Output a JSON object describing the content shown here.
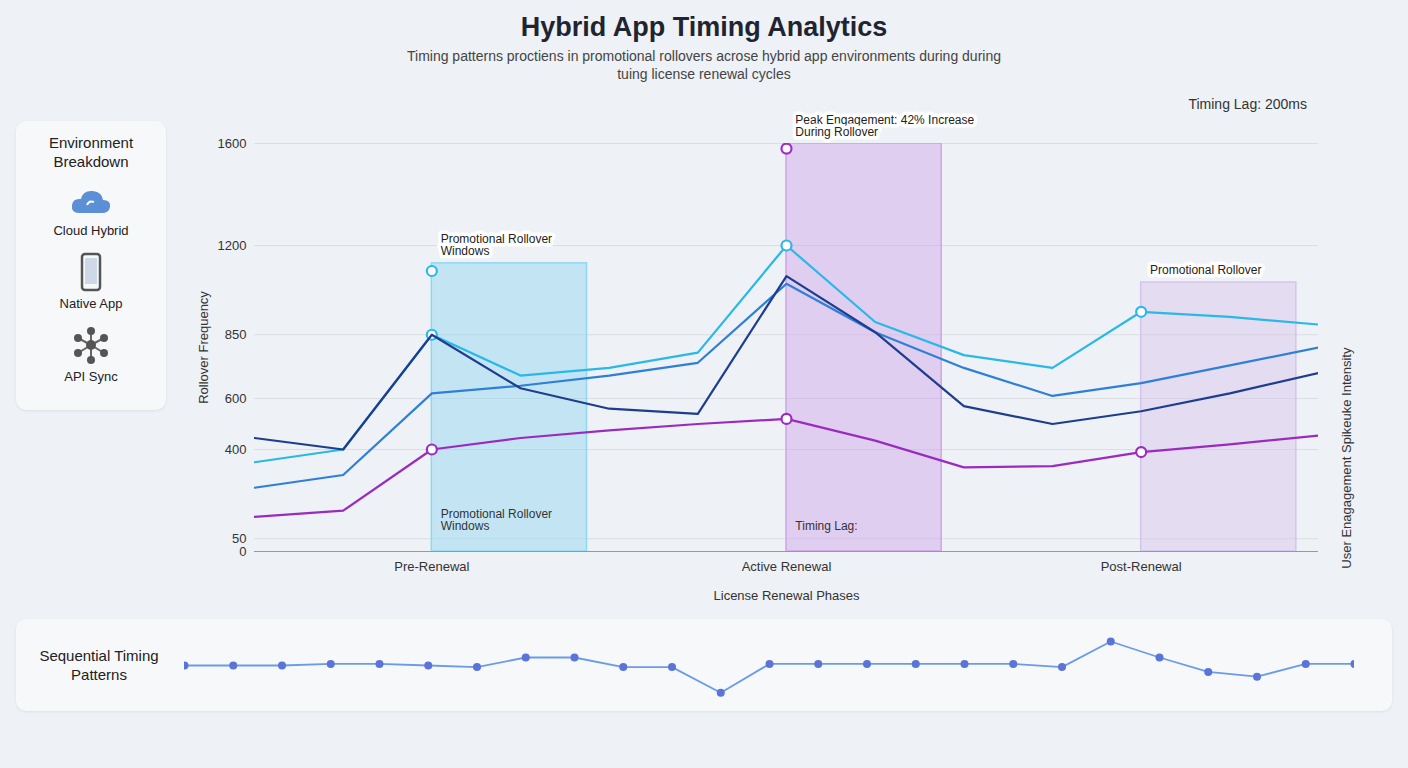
{
  "chart_data": [
    {
      "type": "line",
      "title": "Hybrid App Timing Analytics",
      "subtitle": "Timing patterns proctiens in promotional rollovers acrose hybrid app environments during during tuing license renewal cycles",
      "note": "Timing Lag: 200ms",
      "sidebar": {
        "title": "Environment Breakdown",
        "items": [
          "Cloud Hybrid",
          "Native App",
          "API Sync"
        ]
      },
      "xlabel": "License Renewal Phases",
      "ylabel": "Rollover Frequency",
      "right_label": "User Enagagement Spikeuke Intensity",
      "categories": [
        null,
        null,
        "Pre-Renewal",
        null,
        null,
        null,
        "Active Renewal",
        null,
        null,
        null,
        "Post-Renewal",
        null,
        null
      ],
      "ylim": [
        0,
        1600
      ],
      "yticks": [
        0,
        50,
        400,
        600,
        850,
        1200,
        1600
      ],
      "grid": true,
      "series": [
        {
          "color": "#29b8e8",
          "marker": "circle",
          "values": [
            350,
            400,
            850,
            690,
            720,
            780,
            1200,
            900,
            770,
            720,
            940,
            920,
            890
          ]
        },
        {
          "color": "#2e7fd8",
          "values": [
            250,
            300,
            620,
            650,
            690,
            740,
            1050,
            860,
            720,
            610,
            660,
            730,
            800
          ]
        },
        {
          "color": "#1e3d8f",
          "values": [
            445,
            400,
            850,
            640,
            560,
            540,
            1080,
            860,
            570,
            500,
            550,
            620,
            700
          ]
        },
        {
          "color": "#9a2bbf",
          "marker": "circle",
          "values": [
            136,
            160,
            400,
            445,
            475,
            500,
            520,
            435,
            330,
            335,
            390,
            420,
            455
          ]
        }
      ],
      "points": [
        {
          "category": "Pre-Renewal",
          "value": 1100,
          "color": "#29b8e8"
        },
        {
          "category": "Active Renewal",
          "value": 1580,
          "color": "#a02fc8"
        }
      ],
      "bands": [
        {
          "category": "Pre-Renewal",
          "range": [
            0,
            1130
          ],
          "color": "#8fd8f2",
          "top_label": "Promotional Rollover Windows",
          "inner_label": "Promotional Rollover Windows"
        },
        {
          "category": "Active Renewal",
          "range": [
            0,
            1600
          ],
          "color": "#cfa3ea",
          "top_label": "Peak Engagement: 42% Increase During Rollover",
          "inner_label": "Timing Lag:"
        },
        {
          "category": "Post-Renewal",
          "range": [
            0,
            1055
          ],
          "color": "#d6c4ec",
          "top_label": "Promotional Rollover"
        }
      ]
    },
    {
      "type": "line",
      "title": "Sequential Timing Patterns",
      "values": [
        0,
        0,
        0,
        1,
        1,
        0,
        -1,
        5,
        5,
        -1,
        -1,
        -17,
        1,
        1,
        1,
        1,
        1,
        1,
        -1,
        15,
        5,
        -4,
        -7,
        1,
        1
      ],
      "ylim": [
        -20,
        20
      ],
      "tick_labels": false,
      "color": "#6b9be8",
      "marker": "circle"
    }
  ]
}
